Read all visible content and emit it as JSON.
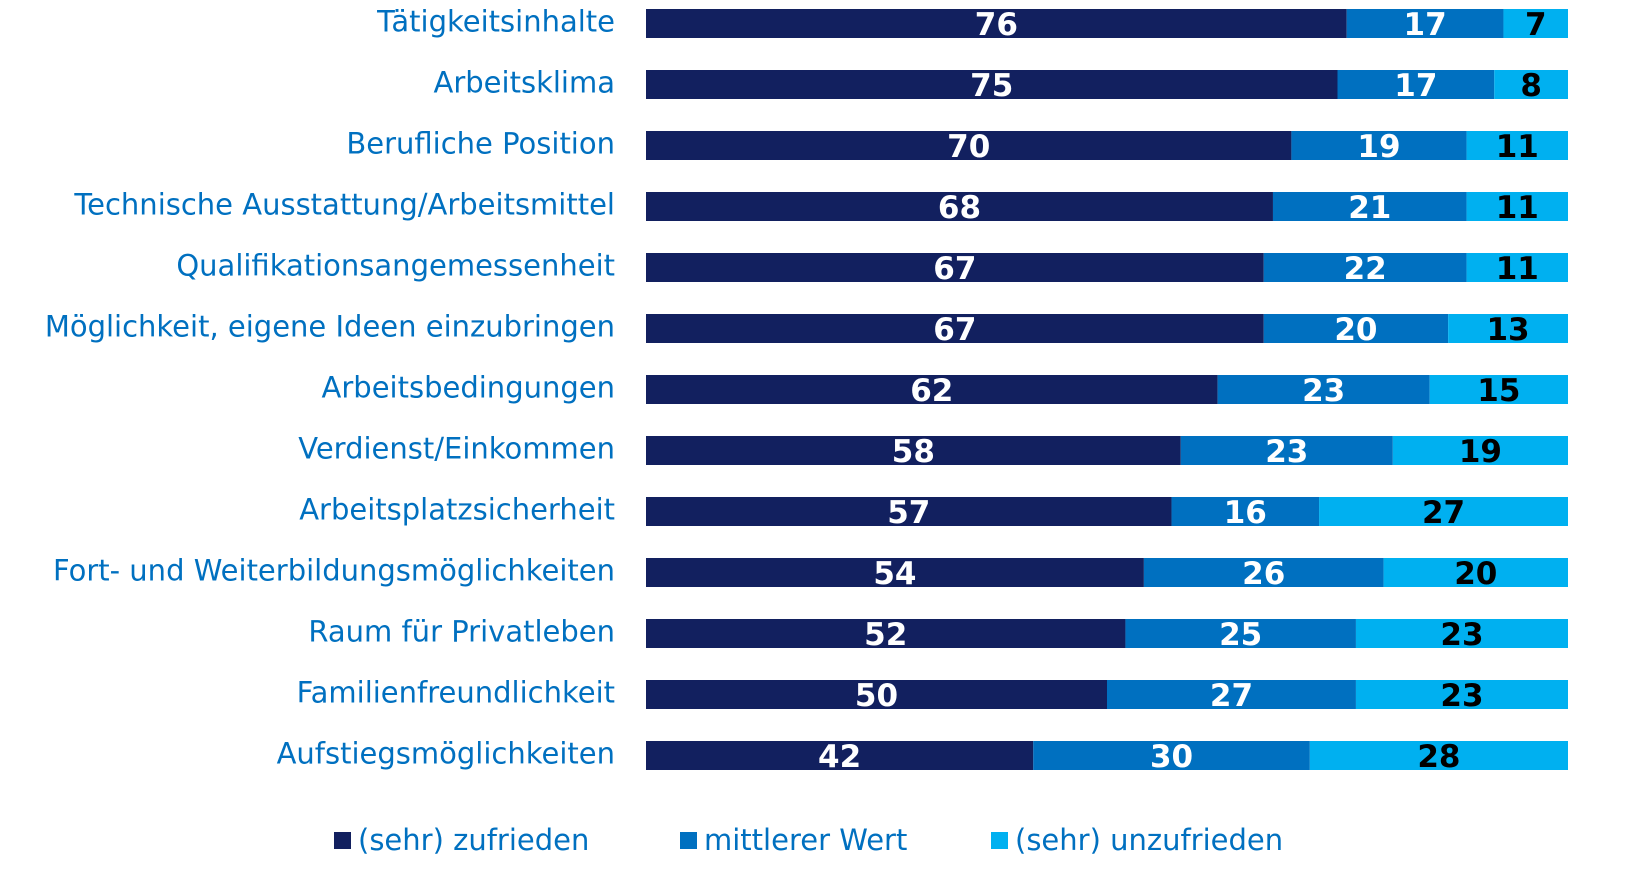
{
  "chart_data": {
    "type": "stacked-bar-horizontal",
    "categories": [
      "Tätigkeitsinhalte",
      "Arbeitsklima",
      "Berufliche Position",
      "Technische Ausstattung/Arbeitsmittel",
      "Qualifikationsangemessenheit",
      "Möglichkeit, eigene Ideen einzubringen",
      "Arbeitsbedingungen",
      "Verdienst/Einkommen",
      "Arbeitsplatzsicherheit",
      "Fort- und Weiterbildungsmöglichkeiten",
      "Raum für Privatleben",
      "Familienfreundlichkeit",
      "Aufstiegsmöglichkeiten"
    ],
    "series": [
      {
        "name": "(sehr) zufrieden",
        "color": "#12205f",
        "label_color": "#ffffff",
        "values": [
          76,
          75,
          70,
          68,
          67,
          67,
          62,
          58,
          57,
          54,
          52,
          50,
          42
        ]
      },
      {
        "name": "mittlerer Wert",
        "color": "#0070c0",
        "label_color": "#ffffff",
        "values": [
          17,
          17,
          19,
          21,
          22,
          20,
          23,
          23,
          16,
          26,
          25,
          27,
          30
        ]
      },
      {
        "name": "(sehr) unzufrieden",
        "color": "#00b0f0",
        "label_color": "#000000",
        "values": [
          7,
          8,
          11,
          11,
          11,
          13,
          15,
          19,
          27,
          20,
          23,
          23,
          28
        ]
      }
    ],
    "legend": "bottom"
  }
}
